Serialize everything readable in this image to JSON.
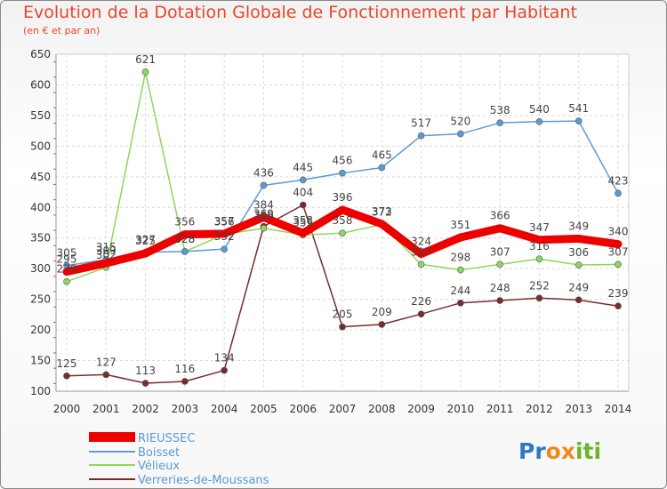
{
  "title": "Evolution de la Dotation Globale de Fonctionnement par Habitant",
  "subtitle": "(en € et par an)",
  "logo": {
    "text": "Proxiti",
    "parts": [
      "Pr",
      "o",
      "x",
      "iti"
    ],
    "colors": [
      "#2b79c2",
      "#f08a1c",
      "#f08a1c",
      "#6bb528"
    ]
  },
  "chart_data": {
    "type": "line",
    "x": [
      "2000",
      "2001",
      "2002",
      "2003",
      "2004",
      "2005",
      "2006",
      "2007",
      "2008",
      "2009",
      "2010",
      "2011",
      "2012",
      "2013",
      "2014"
    ],
    "ylim": [
      100,
      650
    ],
    "yticks": [
      100,
      150,
      200,
      250,
      300,
      350,
      400,
      450,
      500,
      550,
      600,
      650
    ],
    "grid": true,
    "legend_position": "bottom-left",
    "series": [
      {
        "name": "RIEUSSEC",
        "color": "#ee0000",
        "values": [
          295,
          309,
          325,
          356,
          357,
          384,
          358,
          396,
          373,
          324,
          351,
          366,
          347,
          349,
          340
        ],
        "labels": [
          "295",
          "309",
          "325",
          "356",
          "357",
          "384",
          "358",
          "396",
          "373",
          "324",
          "351",
          "366",
          "347",
          "349",
          "340"
        ]
      },
      {
        "name": "Boisset",
        "color": "#5b9bd5",
        "values": [
          305,
          315,
          327,
          328,
          332,
          436,
          445,
          456,
          465,
          517,
          520,
          538,
          540,
          541,
          423
        ],
        "labels": [
          "305",
          "315",
          "327",
          "328",
          "332",
          "436",
          "445",
          "456",
          "465",
          "517",
          "520",
          "538",
          "540",
          "541",
          "423"
        ]
      },
      {
        "name": "Vélieux",
        "color": "#8fd65c",
        "values": [
          279,
          302,
          621,
          328,
          356,
          366,
          355,
          358,
          372,
          307,
          298,
          307,
          316,
          306,
          307
        ],
        "labels": [
          "279",
          "302",
          "621",
          "328",
          "356",
          "366",
          "355",
          "358",
          "372",
          "307",
          "298",
          "307",
          "316",
          "306",
          "307"
        ]
      },
      {
        "name": "Verreries-de-Moussans",
        "color": "#7b2b2b",
        "values": [
          125,
          127,
          113,
          116,
          134,
          369,
          404,
          205,
          209,
          226,
          244,
          248,
          252,
          249,
          239
        ],
        "labels": [
          "125",
          "127",
          "113",
          "116",
          "134",
          "369",
          "404",
          "205",
          "209",
          "226",
          "244",
          "248",
          "252",
          "249",
          "239"
        ]
      }
    ]
  }
}
